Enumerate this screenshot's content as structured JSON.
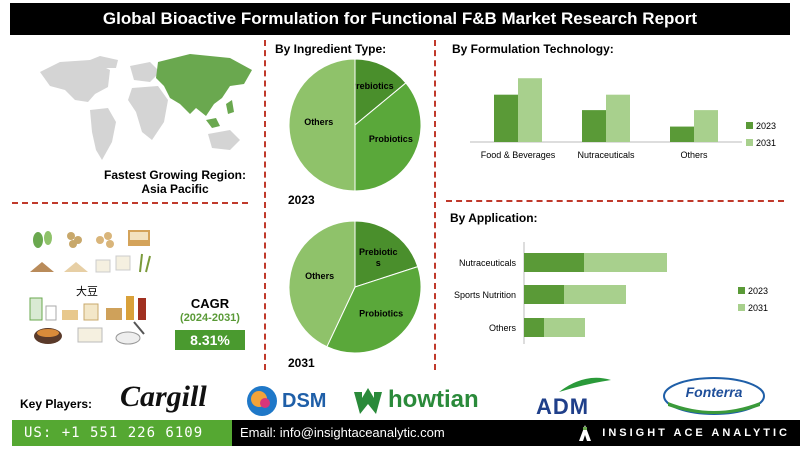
{
  "title": "Global Bioactive Formulation for Functional F&B Market Research Report",
  "region": {
    "line1": "Fastest Growing Region:",
    "line2": "Asia Pacific"
  },
  "cagr": {
    "label": "CAGR",
    "period": "(2024-2031)",
    "value": "8.31%"
  },
  "food_label": "大豆",
  "ingredient": {
    "title": "By Ingredient Type:"
  },
  "formulation": {
    "title": "By Formulation Technology:"
  },
  "application": {
    "title": "By Application:"
  },
  "key_players": {
    "label": "Key Players:",
    "logos": [
      "Cargill",
      "DSM",
      "howtian",
      "ADM",
      "Fonterra"
    ]
  },
  "footer": {
    "phone": "US: +1 551 226 6109",
    "email": "Email: info@insightaceanalytic.com",
    "brand": "INSIGHT ACE ANALYTIC"
  },
  "colors": {
    "dark_green": "#5a9a37",
    "mid_green": "#4a8f2c",
    "light_green": "#a8d08d",
    "pie_light": "#8fc26a"
  },
  "chart_data": [
    {
      "type": "pie",
      "title": "By Ingredient Type:",
      "year": "2023",
      "labels": [
        "Prebiotics",
        "Probiotics",
        "Others"
      ],
      "values": [
        14,
        36,
        50
      ]
    },
    {
      "type": "pie",
      "title": "By Ingredient Type:",
      "year": "2031",
      "labels": [
        "Prebiotics",
        "Probiotics",
        "Others"
      ],
      "label_display": [
        "Prebiotic\ns",
        "Probiotics",
        "Others"
      ],
      "values": [
        20,
        37,
        43
      ]
    },
    {
      "type": "bar",
      "title": "By Formulation Technology:",
      "categories": [
        "Food & Beverages",
        "Nutraceuticals",
        "Others"
      ],
      "series": [
        {
          "name": "2023",
          "values": [
            46,
            31,
            15
          ]
        },
        {
          "name": "2031",
          "values": [
            62,
            46,
            31
          ]
        }
      ],
      "ylim": [
        0,
        70
      ],
      "legend": "right",
      "grid": false
    },
    {
      "type": "bar",
      "orientation": "horizontal",
      "title": "By Application:",
      "categories": [
        "Nutraceuticals",
        "Sports Nutrition",
        "Others"
      ],
      "series": [
        {
          "name": "2023",
          "values": [
            60,
            40,
            20
          ]
        },
        {
          "name": "2031",
          "values": [
            143,
            102,
            61
          ]
        }
      ],
      "xlim": [
        0,
        150
      ],
      "legend": "right",
      "grid": false
    }
  ]
}
